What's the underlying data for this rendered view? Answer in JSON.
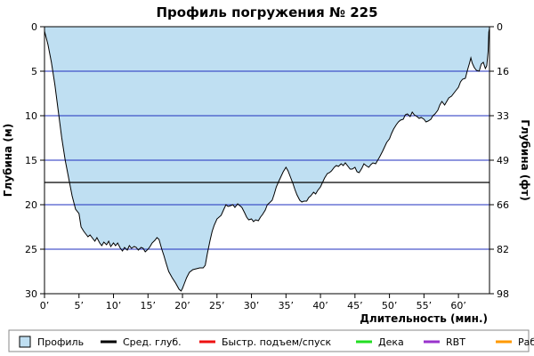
{
  "colors": {
    "profile_fill": "#bfdff2",
    "profile_line": "#000000",
    "grid": "#1f2fbf",
    "avg_depth": "#000000",
    "ascent": "#ee1111",
    "deco": "#22dd22",
    "rbt": "#9933cc",
    "work": "#ff9900",
    "legend_border": "#888888"
  },
  "chart_data": {
    "type": "area",
    "title": "Профиль погружения № 225",
    "xlabel": "Длительность (мин.)",
    "ylabel_left": "Глубина (м)",
    "ylabel_right": "Глубина (фт)",
    "xlim": [
      0,
      64.5
    ],
    "ylim": [
      30,
      0
    ],
    "x_ticks": [
      0,
      5,
      10,
      15,
      20,
      25,
      30,
      35,
      40,
      45,
      50,
      55,
      60
    ],
    "x_tick_labels": [
      "0’",
      "5’",
      "10’",
      "15’",
      "20’",
      "25’",
      "30’",
      "35’",
      "40’",
      "45’",
      "50’",
      "55’",
      "60’"
    ],
    "y_ticks": [
      0,
      5,
      10,
      15,
      20,
      25,
      30
    ],
    "y_tick_labels": [
      "0",
      "5",
      "10",
      "15",
      "20",
      "25",
      "30"
    ],
    "y_right_ticks": [
      0,
      5,
      10,
      15,
      20,
      25,
      30
    ],
    "y_right_tick_labels": [
      "0",
      "16",
      "33",
      "49",
      "66",
      "82",
      "98"
    ],
    "grid": true,
    "average_depth": 17.5,
    "series": [
      {
        "name": "Профиль",
        "points": [
          [
            0,
            0.5
          ],
          [
            0.5,
            2
          ],
          [
            1,
            4
          ],
          [
            1.5,
            6.5
          ],
          [
            2,
            9.5
          ],
          [
            2.5,
            12.5
          ],
          [
            3,
            15
          ],
          [
            3.5,
            17
          ],
          [
            4,
            19
          ],
          [
            4.5,
            20.5
          ],
          [
            5,
            21
          ],
          [
            5.3,
            22.5
          ],
          [
            5.7,
            23
          ],
          [
            6,
            23.3
          ],
          [
            6.3,
            23.6
          ],
          [
            6.6,
            23.4
          ],
          [
            7,
            23.8
          ],
          [
            7.3,
            24.1
          ],
          [
            7.6,
            23.7
          ],
          [
            8,
            24.3
          ],
          [
            8.3,
            24.6
          ],
          [
            8.6,
            24.2
          ],
          [
            9,
            24.5
          ],
          [
            9.3,
            24.1
          ],
          [
            9.6,
            24.7
          ],
          [
            10,
            24.3
          ],
          [
            10.3,
            24.6
          ],
          [
            10.6,
            24.3
          ],
          [
            11,
            24.9
          ],
          [
            11.3,
            25.2
          ],
          [
            11.6,
            24.8
          ],
          [
            12,
            25.1
          ],
          [
            12.3,
            24.6
          ],
          [
            12.6,
            24.9
          ],
          [
            13,
            24.7
          ],
          [
            13.3,
            24.8
          ],
          [
            13.6,
            25.1
          ],
          [
            14,
            24.8
          ],
          [
            14.3,
            24.9
          ],
          [
            14.6,
            25.3
          ],
          [
            15,
            25
          ],
          [
            15.3,
            24.7
          ],
          [
            15.6,
            24.3
          ],
          [
            16,
            24
          ],
          [
            16.3,
            23.7
          ],
          [
            16.6,
            23.9
          ],
          [
            17,
            25
          ],
          [
            17.3,
            25.7
          ],
          [
            17.6,
            26.5
          ],
          [
            18,
            27.5
          ],
          [
            18.5,
            28.2
          ],
          [
            19,
            28.8
          ],
          [
            19.5,
            29.5
          ],
          [
            19.8,
            29.7
          ],
          [
            20,
            29.4
          ],
          [
            20.3,
            28.8
          ],
          [
            20.6,
            28.2
          ],
          [
            21,
            27.6
          ],
          [
            21.5,
            27.3
          ],
          [
            22,
            27.2
          ],
          [
            22.5,
            27.1
          ],
          [
            23,
            27.1
          ],
          [
            23.3,
            26.8
          ],
          [
            23.6,
            25.5
          ],
          [
            24,
            24
          ],
          [
            24.3,
            23
          ],
          [
            24.6,
            22.3
          ],
          [
            25,
            21.6
          ],
          [
            25.3,
            21.4
          ],
          [
            25.6,
            21.2
          ],
          [
            26,
            20.5
          ],
          [
            26.3,
            20
          ],
          [
            26.6,
            20.2
          ],
          [
            27,
            20.1
          ],
          [
            27.3,
            20
          ],
          [
            27.6,
            20.3
          ],
          [
            28,
            19.9
          ],
          [
            28.3,
            20.1
          ],
          [
            28.6,
            20.3
          ],
          [
            29,
            20.9
          ],
          [
            29.3,
            21.4
          ],
          [
            29.6,
            21.7
          ],
          [
            30,
            21.6
          ],
          [
            30.3,
            21.9
          ],
          [
            30.6,
            21.7
          ],
          [
            31,
            21.8
          ],
          [
            31.3,
            21.4
          ],
          [
            31.6,
            21.1
          ],
          [
            32,
            20.6
          ],
          [
            32.3,
            20
          ],
          [
            32.6,
            19.8
          ],
          [
            33,
            19.5
          ],
          [
            33.3,
            18.8
          ],
          [
            33.6,
            18
          ],
          [
            34,
            17.3
          ],
          [
            34.3,
            16.8
          ],
          [
            34.6,
            16.3
          ],
          [
            35,
            15.8
          ],
          [
            35.3,
            16.2
          ],
          [
            35.6,
            16.8
          ],
          [
            36,
            17.6
          ],
          [
            36.3,
            18.3
          ],
          [
            36.6,
            18.9
          ],
          [
            37,
            19.5
          ],
          [
            37.3,
            19.7
          ],
          [
            37.6,
            19.6
          ],
          [
            38,
            19.6
          ],
          [
            38.3,
            19.2
          ],
          [
            38.6,
            19
          ],
          [
            39,
            18.6
          ],
          [
            39.3,
            18.8
          ],
          [
            39.6,
            18.4
          ],
          [
            40,
            18
          ],
          [
            40.3,
            17.5
          ],
          [
            40.6,
            17
          ],
          [
            41,
            16.5
          ],
          [
            41.3,
            16.4
          ],
          [
            41.6,
            16.2
          ],
          [
            42,
            15.8
          ],
          [
            42.3,
            15.6
          ],
          [
            42.6,
            15.7
          ],
          [
            43,
            15.4
          ],
          [
            43.3,
            15.6
          ],
          [
            43.6,
            15.3
          ],
          [
            44,
            15.7
          ],
          [
            44.3,
            16
          ],
          [
            44.6,
            16
          ],
          [
            45,
            15.8
          ],
          [
            45.3,
            16.3
          ],
          [
            45.6,
            16.4
          ],
          [
            46,
            15.9
          ],
          [
            46.3,
            15.4
          ],
          [
            46.6,
            15.6
          ],
          [
            47,
            15.8
          ],
          [
            47.3,
            15.5
          ],
          [
            47.6,
            15.3
          ],
          [
            48,
            15.4
          ],
          [
            48.3,
            15
          ],
          [
            48.6,
            14.6
          ],
          [
            49,
            14
          ],
          [
            49.3,
            13.5
          ],
          [
            49.6,
            13
          ],
          [
            50,
            12.6
          ],
          [
            50.3,
            12
          ],
          [
            50.6,
            11.5
          ],
          [
            51,
            11
          ],
          [
            51.3,
            10.7
          ],
          [
            51.6,
            10.5
          ],
          [
            52,
            10.4
          ],
          [
            52.3,
            9.9
          ],
          [
            52.6,
            9.8
          ],
          [
            53,
            10.1
          ],
          [
            53.3,
            9.6
          ],
          [
            53.6,
            9.9
          ],
          [
            54,
            10.1
          ],
          [
            54.3,
            10.3
          ],
          [
            54.6,
            10.2
          ],
          [
            55,
            10.4
          ],
          [
            55.3,
            10.7
          ],
          [
            55.6,
            10.6
          ],
          [
            56,
            10.4
          ],
          [
            56.3,
            10
          ],
          [
            56.6,
            9.8
          ],
          [
            57,
            9.4
          ],
          [
            57.3,
            8.8
          ],
          [
            57.6,
            8.4
          ],
          [
            58,
            8.8
          ],
          [
            58.3,
            8.4
          ],
          [
            58.6,
            8
          ],
          [
            59,
            7.8
          ],
          [
            59.3,
            7.5
          ],
          [
            59.6,
            7.2
          ],
          [
            60,
            6.8
          ],
          [
            60.3,
            6.2
          ],
          [
            60.6,
            5.9
          ],
          [
            61,
            5.8
          ],
          [
            61.3,
            4.9
          ],
          [
            61.6,
            4.1
          ],
          [
            61.8,
            3.5
          ],
          [
            62,
            4.1
          ],
          [
            62.3,
            4.6
          ],
          [
            62.6,
            4.9
          ],
          [
            63,
            5
          ],
          [
            63.3,
            4.2
          ],
          [
            63.6,
            4
          ],
          [
            63.9,
            4.7
          ],
          [
            64.1,
            4.4
          ],
          [
            64.3,
            2.8
          ],
          [
            64.4,
            0.6
          ],
          [
            64.5,
            0.2
          ]
        ]
      }
    ],
    "legend": {
      "placement": "bottom",
      "items": [
        {
          "label": "Профиль",
          "kind": "swatch",
          "color": "#bfdff2"
        },
        {
          "label": "Сред. глуб.",
          "kind": "line",
          "color": "#000000"
        },
        {
          "label": "Быстр. подъем/спуск",
          "kind": "line",
          "color": "#ee1111"
        },
        {
          "label": "Дека",
          "kind": "line",
          "color": "#22dd22"
        },
        {
          "label": "RBT",
          "kind": "line",
          "color": "#9933cc"
        },
        {
          "label": "Раб.",
          "kind": "line",
          "color": "#ff9900"
        }
      ]
    }
  }
}
